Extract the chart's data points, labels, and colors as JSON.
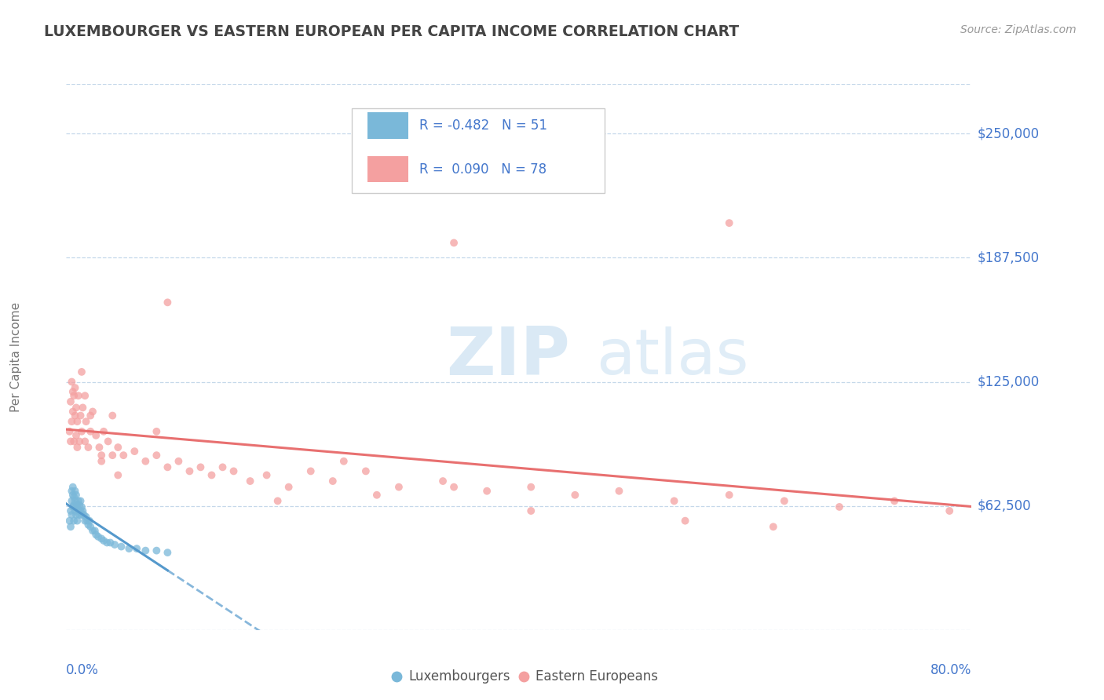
{
  "title": "LUXEMBOURGER VS EASTERN EUROPEAN PER CAPITA INCOME CORRELATION CHART",
  "source": "Source: ZipAtlas.com",
  "ylabel": "Per Capita Income",
  "ytick_labels": [
    "$62,500",
    "$125,000",
    "$187,500",
    "$250,000"
  ],
  "ytick_values": [
    62500,
    125000,
    187500,
    250000
  ],
  "ymin": 0,
  "ymax": 275000,
  "xmin": -0.002,
  "xmax": 0.82,
  "legend_blue_label": "Luxembourgers",
  "legend_pink_label": "Eastern Europeans",
  "blue_color": "#7ab8d9",
  "pink_color": "#f4a0a0",
  "blue_line_color": "#5599cc",
  "pink_line_color": "#e87070",
  "axis_color": "#4477cc",
  "grid_color": "#c5d8ea",
  "background_color": "#ffffff",
  "title_color": "#444444",
  "source_color": "#999999",
  "ylabel_color": "#777777",
  "blue_scatter_x": [
    0.001,
    0.002,
    0.002,
    0.003,
    0.003,
    0.003,
    0.004,
    0.004,
    0.004,
    0.005,
    0.005,
    0.005,
    0.006,
    0.006,
    0.006,
    0.007,
    0.007,
    0.007,
    0.008,
    0.008,
    0.009,
    0.009,
    0.01,
    0.01,
    0.011,
    0.011,
    0.012,
    0.012,
    0.013,
    0.014,
    0.015,
    0.016,
    0.017,
    0.018,
    0.019,
    0.02,
    0.022,
    0.024,
    0.025,
    0.027,
    0.03,
    0.032,
    0.035,
    0.038,
    0.042,
    0.048,
    0.055,
    0.062,
    0.07,
    0.08,
    0.09
  ],
  "blue_scatter_y": [
    55000,
    52000,
    60000,
    58000,
    65000,
    70000,
    62000,
    68000,
    72000,
    55000,
    63000,
    67000,
    60000,
    65000,
    70000,
    58000,
    62000,
    68000,
    55000,
    63000,
    60000,
    65000,
    58000,
    63000,
    60000,
    65000,
    58000,
    62000,
    60000,
    58000,
    55000,
    57000,
    55000,
    53000,
    55000,
    52000,
    50000,
    50000,
    48000,
    47000,
    46000,
    45000,
    44000,
    44000,
    43000,
    42000,
    41000,
    41000,
    40000,
    40000,
    39000
  ],
  "pink_scatter_x": [
    0.001,
    0.002,
    0.002,
    0.003,
    0.003,
    0.004,
    0.004,
    0.005,
    0.005,
    0.006,
    0.006,
    0.007,
    0.007,
    0.008,
    0.008,
    0.009,
    0.01,
    0.011,
    0.012,
    0.013,
    0.015,
    0.016,
    0.018,
    0.02,
    0.022,
    0.025,
    0.028,
    0.032,
    0.036,
    0.04,
    0.045,
    0.05,
    0.06,
    0.07,
    0.08,
    0.09,
    0.1,
    0.11,
    0.12,
    0.13,
    0.14,
    0.15,
    0.165,
    0.18,
    0.2,
    0.22,
    0.24,
    0.27,
    0.3,
    0.34,
    0.38,
    0.42,
    0.46,
    0.5,
    0.55,
    0.6,
    0.65,
    0.7,
    0.75,
    0.8,
    0.03,
    0.045,
    0.28,
    0.35,
    0.19,
    0.42,
    0.56,
    0.64,
    0.04,
    0.25,
    0.012,
    0.015,
    0.02,
    0.03,
    0.08,
    0.6,
    0.35,
    0.09
  ],
  "pink_scatter_y": [
    100000,
    95000,
    115000,
    105000,
    125000,
    110000,
    120000,
    95000,
    118000,
    108000,
    122000,
    98000,
    112000,
    92000,
    105000,
    118000,
    95000,
    108000,
    100000,
    112000,
    95000,
    105000,
    92000,
    100000,
    110000,
    98000,
    92000,
    100000,
    95000,
    88000,
    92000,
    88000,
    90000,
    85000,
    88000,
    82000,
    85000,
    80000,
    82000,
    78000,
    82000,
    80000,
    75000,
    78000,
    72000,
    80000,
    75000,
    80000,
    72000,
    75000,
    70000,
    72000,
    68000,
    70000,
    65000,
    68000,
    65000,
    62000,
    65000,
    60000,
    85000,
    78000,
    68000,
    72000,
    65000,
    60000,
    55000,
    52000,
    108000,
    85000,
    130000,
    118000,
    108000,
    88000,
    100000,
    205000,
    195000,
    165000
  ]
}
